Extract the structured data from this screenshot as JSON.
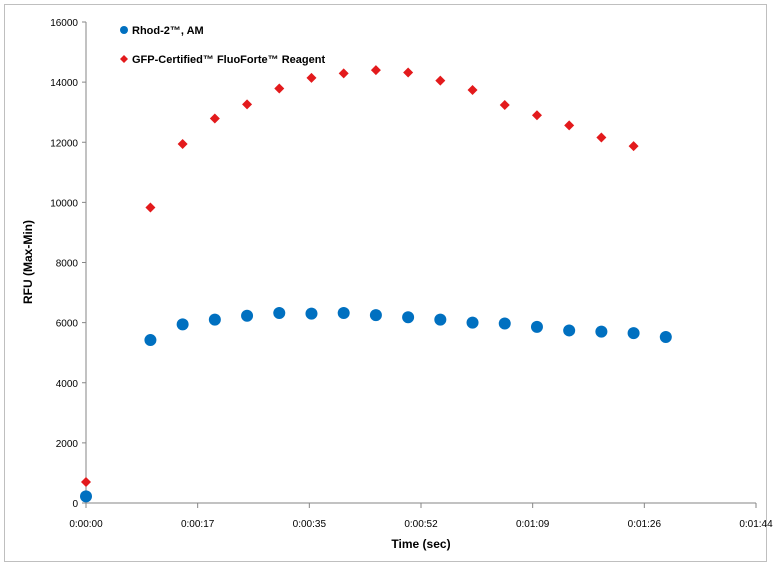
{
  "chart_data": {
    "type": "scatter",
    "title": "",
    "xlabel": "Time (sec)",
    "ylabel": "RFU (Max-Min)",
    "x_tick_labels": [
      "0:00:00",
      "0:00:17",
      "0:00:35",
      "0:00:52",
      "0:01:09",
      "0:01:26",
      "0:01:44"
    ],
    "y_tick_labels": [
      "0",
      "2000",
      "4000",
      "6000",
      "8000",
      "10000",
      "12000",
      "14000",
      "16000"
    ],
    "xlim_sec": [
      0,
      104
    ],
    "ylim": [
      0,
      16000
    ],
    "grid": false,
    "legend_position": "top-left",
    "series": [
      {
        "name": "Rhod-2™, AM",
        "color": "#0070c0",
        "marker": "circle",
        "points": [
          {
            "x": "0:00:00",
            "y": 220
          },
          {
            "x": "0:00:10",
            "y": 5420
          },
          {
            "x": "0:00:15",
            "y": 5940
          },
          {
            "x": "0:00:20",
            "y": 6100
          },
          {
            "x": "0:00:25",
            "y": 6230
          },
          {
            "x": "0:00:30",
            "y": 6320
          },
          {
            "x": "0:00:35",
            "y": 6300
          },
          {
            "x": "0:00:40",
            "y": 6320
          },
          {
            "x": "0:00:45",
            "y": 6250
          },
          {
            "x": "0:00:50",
            "y": 6180
          },
          {
            "x": "0:00:55",
            "y": 6100
          },
          {
            "x": "0:01:00",
            "y": 6000
          },
          {
            "x": "0:01:05",
            "y": 5970
          },
          {
            "x": "0:01:10",
            "y": 5860
          },
          {
            "x": "0:01:15",
            "y": 5740
          },
          {
            "x": "0:01:20",
            "y": 5700
          },
          {
            "x": "0:01:25",
            "y": 5650
          },
          {
            "x": "0:01:30",
            "y": 5520
          }
        ]
      },
      {
        "name": "GFP-Certified™ FluoForte™ Reagent",
        "color": "#e31a1c",
        "marker": "diamond",
        "points": [
          {
            "x": "0:00:00",
            "y": 700
          },
          {
            "x": "0:00:10",
            "y": 9830
          },
          {
            "x": "0:00:15",
            "y": 11940
          },
          {
            "x": "0:00:20",
            "y": 12790
          },
          {
            "x": "0:00:25",
            "y": 13260
          },
          {
            "x": "0:00:30",
            "y": 13790
          },
          {
            "x": "0:00:35",
            "y": 14140
          },
          {
            "x": "0:00:40",
            "y": 14290
          },
          {
            "x": "0:00:45",
            "y": 14400
          },
          {
            "x": "0:00:50",
            "y": 14320
          },
          {
            "x": "0:00:55",
            "y": 14050
          },
          {
            "x": "0:01:00",
            "y": 13740
          },
          {
            "x": "0:01:05",
            "y": 13240
          },
          {
            "x": "0:01:10",
            "y": 12900
          },
          {
            "x": "0:01:15",
            "y": 12560
          },
          {
            "x": "0:01:20",
            "y": 12160
          },
          {
            "x": "0:01:25",
            "y": 11870
          }
        ]
      }
    ]
  }
}
